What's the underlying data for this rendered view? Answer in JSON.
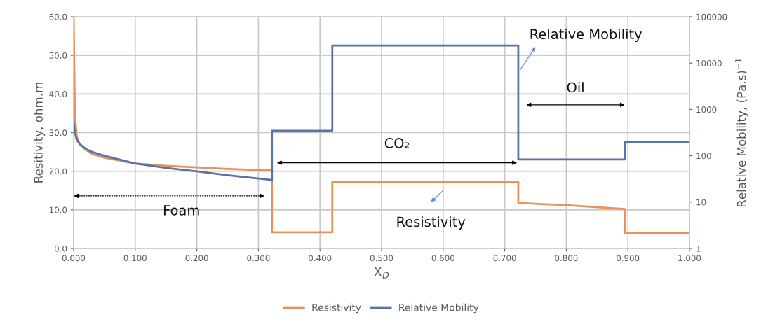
{
  "chart_data": {
    "type": "line",
    "xlabel": "X$_{D}$",
    "ylabel": "Resitivity, ohm.m",
    "y2label": "Relative Mobility, (Pa.s)$^{−1}$",
    "xlim": [
      0,
      1
    ],
    "ylim": [
      0,
      60
    ],
    "y2lim": [
      1,
      100000
    ],
    "log": "y2",
    "grid": true,
    "legend": "bottom",
    "xticks": [
      {
        "value": 0,
        "label": "0.000"
      },
      {
        "value": 0.1,
        "label": "0.100"
      },
      {
        "value": 0.2,
        "label": "0.200"
      },
      {
        "value": 0.3,
        "label": "0.300"
      },
      {
        "value": 0.4,
        "label": "0.400"
      },
      {
        "value": 0.5,
        "label": "0.500"
      },
      {
        "value": 0.6,
        "label": "0.600"
      },
      {
        "value": 0.7,
        "label": "0.700"
      },
      {
        "value": 0.8,
        "label": "0.800"
      },
      {
        "value": 0.9,
        "label": "0.900"
      },
      {
        "value": 1,
        "label": "1.000"
      }
    ],
    "yticks": [
      {
        "value": 0,
        "label": "0.0"
      },
      {
        "value": 10,
        "label": "10.0"
      },
      {
        "value": 20,
        "label": "20.0"
      },
      {
        "value": 30,
        "label": "30.0"
      },
      {
        "value": 40,
        "label": "40.0"
      },
      {
        "value": 50,
        "label": "50.0"
      },
      {
        "value": 60,
        "label": "60.0"
      }
    ],
    "y2ticks": [
      1,
      10,
      100,
      1000,
      10000,
      100000
    ],
    "series": [
      {
        "name": "Resistivity",
        "color": "#e8915a",
        "x": [
          0,
          0.002,
          0.005,
          0.01,
          0.02,
          0.03,
          0.05,
          0.1,
          0.15,
          0.2,
          0.25,
          0.322,
          0.322,
          0.42,
          0.42,
          0.722,
          0.722,
          0.8,
          0.895,
          0.895,
          1.0
        ],
        "values": [
          60,
          35,
          29,
          27,
          25.5,
          24.5,
          23.5,
          22,
          21.4,
          21,
          20.6,
          20.2,
          4.2,
          4.2,
          17.2,
          17.2,
          11.8,
          11.2,
          10.2,
          4,
          4
        ]
      },
      {
        "name": "Relative Mobility",
        "color": "#5b72a6",
        "axis": "y2",
        "x": [
          0,
          0.002,
          0.005,
          0.01,
          0.02,
          0.03,
          0.05,
          0.1,
          0.15,
          0.2,
          0.25,
          0.322,
          0.322,
          0.42,
          0.42,
          0.722,
          0.722,
          0.895,
          0.895,
          1.0
        ],
        "values": [
          560,
          320,
          220,
          178,
          140,
          121,
          100,
          68,
          55,
          46,
          38,
          30,
          345,
          345,
          24000,
          24000,
          83,
          83,
          200,
          200
        ]
      }
    ],
    "annotations": [
      "Relative Mobility",
      "Resistivity",
      "Foam",
      "CO₂",
      "Oil"
    ]
  }
}
